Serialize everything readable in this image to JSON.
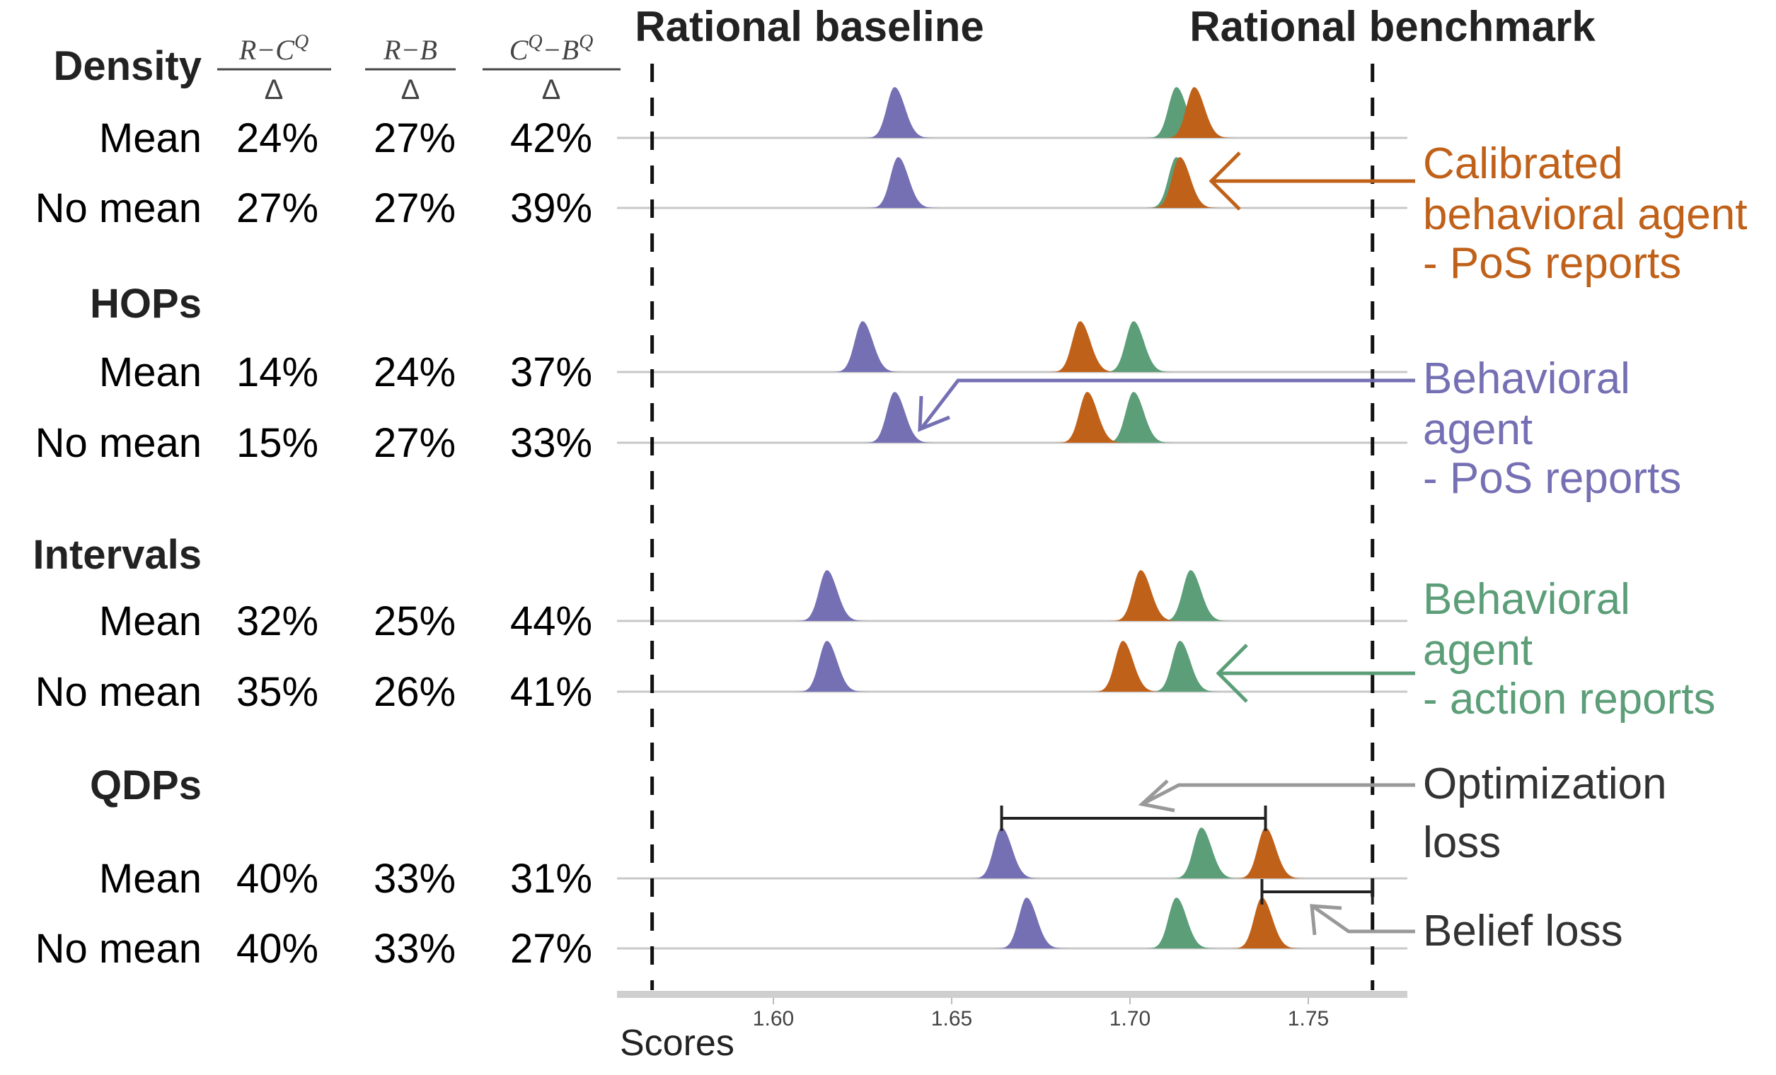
{
  "chart_data": {
    "type": "ridgeline",
    "xlabel": "Scores",
    "xlim": [
      1.553,
      1.778
    ],
    "xticks": [
      "1.60",
      "1.65",
      "1.70",
      "1.75"
    ],
    "xtick_values": [
      1.6,
      1.65,
      1.7,
      1.75
    ],
    "reference_lines": [
      {
        "label": "Rational baseline",
        "x": 1.566
      },
      {
        "label": "Rational benchmark",
        "x": 1.768
      }
    ],
    "column_headers": [
      {
        "num": "R−C^Q",
        "num_main": "R−C",
        "num_sup": "Q",
        "den": "Δ"
      },
      {
        "num": "R−B",
        "num_main": "R−B",
        "num_sup": "",
        "den": "Δ"
      },
      {
        "num": "C^Q−B^Q",
        "num_main": "C",
        "num_sup": "Q",
        "num_main2": "−B",
        "num_sup2": "Q",
        "den": "Δ"
      }
    ],
    "series_colors": {
      "behavioral_pos": "#7570b3",
      "calibrated_pos": "#c0611a",
      "behavioral_action": "#5b9e78"
    },
    "groups": [
      {
        "name": "Density",
        "rows": [
          {
            "label": "Mean",
            "values": [
              "24%",
              "27%",
              "42%"
            ],
            "peaks": {
              "behavioral_pos": 1.634,
              "behavioral_action": 1.713,
              "calibrated_pos": 1.718
            }
          },
          {
            "label": "No mean",
            "values": [
              "27%",
              "27%",
              "39%"
            ],
            "peaks": {
              "behavioral_pos": 1.635,
              "behavioral_action": 1.713,
              "calibrated_pos": 1.714
            }
          }
        ]
      },
      {
        "name": "HOPs",
        "rows": [
          {
            "label": "Mean",
            "values": [
              "14%",
              "24%",
              "37%"
            ],
            "peaks": {
              "behavioral_pos": 1.625,
              "calibrated_pos": 1.686,
              "behavioral_action": 1.701
            }
          },
          {
            "label": "No mean",
            "values": [
              "15%",
              "27%",
              "33%"
            ],
            "peaks": {
              "behavioral_pos": 1.634,
              "calibrated_pos": 1.688,
              "behavioral_action": 1.701
            }
          }
        ]
      },
      {
        "name": "Intervals",
        "rows": [
          {
            "label": "Mean",
            "values": [
              "32%",
              "25%",
              "44%"
            ],
            "peaks": {
              "behavioral_pos": 1.615,
              "calibrated_pos": 1.703,
              "behavioral_action": 1.717
            }
          },
          {
            "label": "No mean",
            "values": [
              "35%",
              "26%",
              "41%"
            ],
            "peaks": {
              "behavioral_pos": 1.615,
              "calibrated_pos": 1.698,
              "behavioral_action": 1.714
            }
          }
        ]
      },
      {
        "name": "QDPs",
        "rows": [
          {
            "label": "Mean",
            "values": [
              "40%",
              "33%",
              "31%"
            ],
            "peaks": {
              "behavioral_pos": 1.664,
              "behavioral_action": 1.72,
              "calibrated_pos": 1.738
            }
          },
          {
            "label": "No mean",
            "values": [
              "40%",
              "33%",
              "27%"
            ],
            "peaks": {
              "behavioral_pos": 1.671,
              "behavioral_action": 1.713,
              "calibrated_pos": 1.737
            }
          }
        ]
      }
    ],
    "annotations": {
      "calibrated": {
        "lines": [
          "Calibrated",
          "behavioral agent",
          "- PoS reports"
        ],
        "color": "#c0611a"
      },
      "behavioral_pos": {
        "lines": [
          "Behavioral",
          "agent",
          "- PoS reports"
        ],
        "color": "#7570b3"
      },
      "behavioral_action": {
        "lines": [
          "Behavioral",
          "agent",
          "- action reports"
        ],
        "color": "#5b9e78"
      },
      "optimization_loss": {
        "lines": [
          "Optimization",
          "loss"
        ],
        "color": "#333333",
        "from": 1.664,
        "to": 1.738
      },
      "belief_loss": {
        "lines": [
          "Belief loss"
        ],
        "color": "#333333",
        "from": 1.737,
        "to": 1.768
      }
    }
  }
}
